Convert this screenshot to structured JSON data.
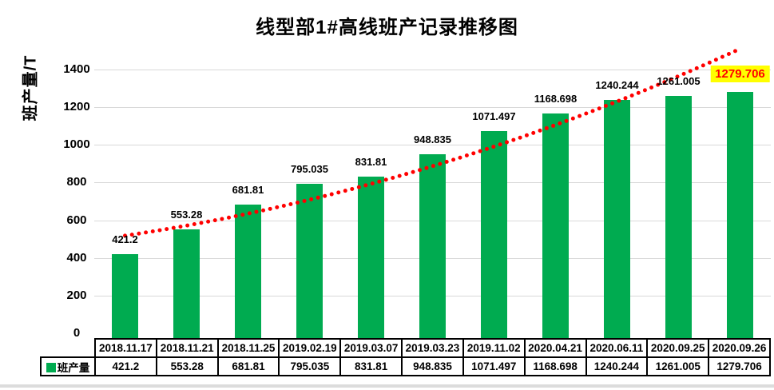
{
  "chart": {
    "title": "线型部1#高线班产记录推移图",
    "y_axis_label": "班产量/T"
  },
  "chart_data": {
    "type": "bar",
    "title": "线型部1#高线班产记录推移图",
    "xlabel": "",
    "ylabel": "班产量/T",
    "ylim": [
      0,
      1500
    ],
    "y_ticks": [
      0,
      200,
      400,
      600,
      800,
      1000,
      1200,
      1400
    ],
    "grid": true,
    "legend_position": "bottom-table-row",
    "categories": [
      "2018.11.17",
      "2018.11.21",
      "2018.11.25",
      "2019.02.19",
      "2019.03.07",
      "2019.03.23",
      "2019.11.02",
      "2020.04.21",
      "2020.06.11",
      "2020.09.25",
      "2020.09.26"
    ],
    "series": [
      {
        "name": "班产量",
        "color": "#00AB50",
        "values": [
          421.2,
          553.28,
          681.81,
          795.035,
          831.81,
          948.835,
          1071.497,
          1168.698,
          1240.244,
          1261.005,
          1279.706
        ],
        "value_labels": [
          "421.2",
          "553.28",
          "681.81",
          "795.035",
          "831.81",
          "948.835",
          "1071.497",
          "1168.698",
          "1240.244",
          "1261.005",
          "1279.706"
        ]
      }
    ],
    "trendline": {
      "type": "power-fit",
      "color": "#FF0000",
      "style": "dotted",
      "sample_values_start_mid_end": [
        518,
        887,
        1510
      ]
    },
    "last_label_highlight": {
      "background": "#FFFF00",
      "text_color": "#FF0000"
    }
  },
  "colors": {
    "bar": "#00AB50",
    "trend": "#FF0000",
    "gridline": "#D9D9D9",
    "highlight_bg": "#FFFF00",
    "highlight_text": "#FF0000",
    "table_border": "#000000",
    "text": "#000000"
  }
}
